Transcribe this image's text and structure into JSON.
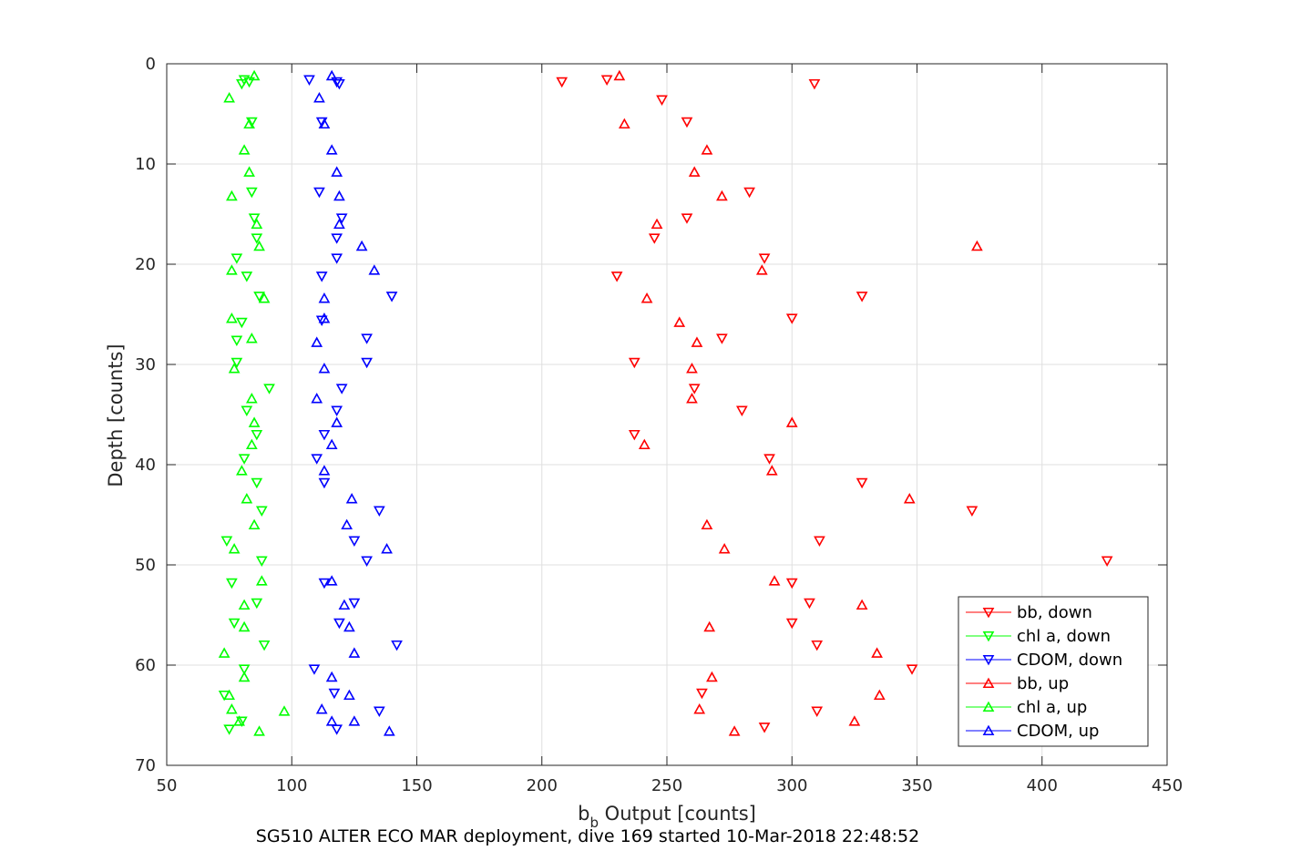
{
  "chart_data": {
    "type": "scatter",
    "xlabel_main": "b",
    "xlabel_sub": "b",
    "xlabel_rest": " Output [counts]",
    "ylabel": "Depth [counts]",
    "caption": "SG510 ALTER ECO MAR deployment, dive 169 started 10-Mar-2018 22:48:52",
    "xlim": [
      50,
      450
    ],
    "ylim": [
      0,
      70
    ],
    "y_reversed": true,
    "grid": true,
    "xticks": [
      50,
      100,
      150,
      200,
      250,
      300,
      350,
      400,
      450
    ],
    "yticks": [
      0,
      10,
      20,
      30,
      40,
      50,
      60,
      70
    ],
    "legend_position": "bottom-right",
    "series": [
      {
        "name": "bb, down",
        "color": "#ff0000",
        "marker": "triangle-down",
        "points": [
          [
            208,
            1.8
          ],
          [
            226,
            1.6
          ],
          [
            309,
            2.0
          ],
          [
            248,
            3.6
          ],
          [
            258,
            5.8
          ],
          [
            283,
            12.8
          ],
          [
            258,
            15.4
          ],
          [
            245,
            17.4
          ],
          [
            289,
            19.4
          ],
          [
            230,
            21.2
          ],
          [
            328,
            23.2
          ],
          [
            300,
            25.4
          ],
          [
            272,
            27.4
          ],
          [
            237,
            29.8
          ],
          [
            261,
            32.4
          ],
          [
            280,
            34.6
          ],
          [
            237,
            37.0
          ],
          [
            291,
            39.4
          ],
          [
            328,
            41.8
          ],
          [
            372,
            44.6
          ],
          [
            311,
            47.6
          ],
          [
            426,
            49.6
          ],
          [
            300,
            51.8
          ],
          [
            307,
            53.8
          ],
          [
            300,
            55.8
          ],
          [
            310,
            58.0
          ],
          [
            348,
            60.4
          ],
          [
            264,
            62.8
          ],
          [
            310,
            64.6
          ],
          [
            289,
            66.2
          ]
        ]
      },
      {
        "name": "chl a, down",
        "color": "#00ff00",
        "marker": "triangle-down",
        "points": [
          [
            81,
            1.6
          ],
          [
            80,
            2.0
          ],
          [
            83,
            1.8
          ],
          [
            84,
            5.8
          ],
          [
            84,
            12.8
          ],
          [
            85,
            15.4
          ],
          [
            86,
            17.4
          ],
          [
            78,
            19.4
          ],
          [
            82,
            21.2
          ],
          [
            87,
            23.2
          ],
          [
            80,
            25.8
          ],
          [
            78,
            27.6
          ],
          [
            78,
            29.8
          ],
          [
            91,
            32.4
          ],
          [
            82,
            34.6
          ],
          [
            86,
            37.0
          ],
          [
            81,
            39.4
          ],
          [
            86,
            41.8
          ],
          [
            88,
            44.6
          ],
          [
            74,
            47.6
          ],
          [
            88,
            49.6
          ],
          [
            76,
            51.8
          ],
          [
            86,
            53.8
          ],
          [
            77,
            55.8
          ],
          [
            89,
            58.0
          ],
          [
            81,
            60.4
          ],
          [
            73,
            63.0
          ],
          [
            80,
            65.6
          ],
          [
            75,
            66.4
          ]
        ]
      },
      {
        "name": "CDOM, down",
        "color": "#0000ff",
        "marker": "triangle-down",
        "points": [
          [
            107,
            1.6
          ],
          [
            119,
            2.0
          ],
          [
            118,
            1.8
          ],
          [
            112,
            5.8
          ],
          [
            111,
            12.8
          ],
          [
            120,
            15.4
          ],
          [
            118,
            17.4
          ],
          [
            118,
            19.4
          ],
          [
            112,
            21.2
          ],
          [
            140,
            23.2
          ],
          [
            112,
            25.6
          ],
          [
            130,
            27.4
          ],
          [
            130,
            29.8
          ],
          [
            120,
            32.4
          ],
          [
            118,
            34.6
          ],
          [
            113,
            37.0
          ],
          [
            110,
            39.4
          ],
          [
            113,
            41.8
          ],
          [
            135,
            44.6
          ],
          [
            125,
            47.6
          ],
          [
            130,
            49.6
          ],
          [
            113,
            51.8
          ],
          [
            125,
            53.8
          ],
          [
            119,
            55.8
          ],
          [
            142,
            58.0
          ],
          [
            109,
            60.4
          ],
          [
            117,
            62.8
          ],
          [
            135,
            64.6
          ],
          [
            118,
            66.4
          ]
        ]
      },
      {
        "name": "bb, up",
        "color": "#ff0000",
        "marker": "triangle-up",
        "points": [
          [
            231,
            1.2
          ],
          [
            233,
            6.0
          ],
          [
            266,
            8.6
          ],
          [
            261,
            10.8
          ],
          [
            272,
            13.2
          ],
          [
            246,
            16.0
          ],
          [
            374,
            18.2
          ],
          [
            288,
            20.6
          ],
          [
            242,
            23.4
          ],
          [
            255,
            25.8
          ],
          [
            262,
            27.8
          ],
          [
            260,
            30.4
          ],
          [
            260,
            33.4
          ],
          [
            300,
            35.8
          ],
          [
            241,
            38.0
          ],
          [
            292,
            40.6
          ],
          [
            347,
            43.4
          ],
          [
            266,
            46.0
          ],
          [
            273,
            48.4
          ],
          [
            293,
            51.6
          ],
          [
            328,
            54.0
          ],
          [
            267,
            56.2
          ],
          [
            334,
            58.8
          ],
          [
            268,
            61.2
          ],
          [
            335,
            63.0
          ],
          [
            263,
            64.4
          ],
          [
            325,
            65.6
          ],
          [
            277,
            66.6
          ]
        ]
      },
      {
        "name": "chl a, up",
        "color": "#00ff00",
        "marker": "triangle-up",
        "points": [
          [
            85,
            1.2
          ],
          [
            75,
            3.4
          ],
          [
            83,
            6.0
          ],
          [
            81,
            8.6
          ],
          [
            83,
            10.8
          ],
          [
            76,
            13.2
          ],
          [
            86,
            16.0
          ],
          [
            87,
            18.2
          ],
          [
            76,
            20.6
          ],
          [
            89,
            23.4
          ],
          [
            76,
            25.4
          ],
          [
            84,
            27.4
          ],
          [
            77,
            30.4
          ],
          [
            84,
            33.4
          ],
          [
            85,
            35.8
          ],
          [
            84,
            38.0
          ],
          [
            80,
            40.6
          ],
          [
            82,
            43.4
          ],
          [
            85,
            46.0
          ],
          [
            77,
            48.4
          ],
          [
            88,
            51.6
          ],
          [
            81,
            54.0
          ],
          [
            81,
            56.2
          ],
          [
            73,
            58.8
          ],
          [
            81,
            61.2
          ],
          [
            75,
            63.0
          ],
          [
            76,
            64.4
          ],
          [
            97,
            64.6
          ],
          [
            79,
            65.6
          ],
          [
            87,
            66.6
          ]
        ]
      },
      {
        "name": "CDOM, up",
        "color": "#0000ff",
        "marker": "triangle-up",
        "points": [
          [
            116,
            1.2
          ],
          [
            111,
            3.4
          ],
          [
            113,
            6.0
          ],
          [
            116,
            8.6
          ],
          [
            118,
            10.8
          ],
          [
            119,
            13.2
          ],
          [
            119,
            16.0
          ],
          [
            128,
            18.2
          ],
          [
            133,
            20.6
          ],
          [
            113,
            23.4
          ],
          [
            113,
            25.4
          ],
          [
            110,
            27.8
          ],
          [
            113,
            30.4
          ],
          [
            110,
            33.4
          ],
          [
            118,
            35.8
          ],
          [
            116,
            38.0
          ],
          [
            113,
            40.6
          ],
          [
            124,
            43.4
          ],
          [
            122,
            46.0
          ],
          [
            138,
            48.4
          ],
          [
            116,
            51.6
          ],
          [
            121,
            54.0
          ],
          [
            123,
            56.2
          ],
          [
            125,
            58.8
          ],
          [
            116,
            61.2
          ],
          [
            123,
            63.0
          ],
          [
            112,
            64.4
          ],
          [
            125,
            65.6
          ],
          [
            116,
            65.6
          ],
          [
            139,
            66.6
          ]
        ]
      }
    ]
  }
}
